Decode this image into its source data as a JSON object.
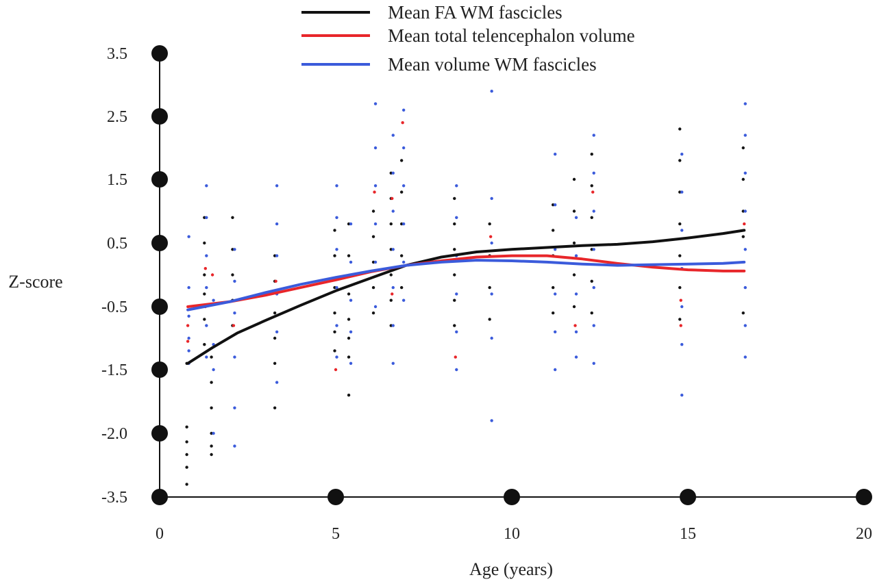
{
  "chart_data": {
    "type": "line",
    "xlabel": "Age (years)",
    "ylabel": "Z-score",
    "x_ticks": [
      0,
      5,
      10,
      15,
      20
    ],
    "x_tick_labels": [
      "0",
      "5",
      "10",
      "15",
      "20"
    ],
    "y_ticks": [
      -3.5,
      -2.0,
      -1.5,
      -0.5,
      0.5,
      1.5,
      2.5,
      3.5
    ],
    "y_tick_labels": [
      "-3.5",
      "-2.0",
      "-1.5",
      "-0.5",
      "0.5",
      "1.5",
      "2.5",
      "3.5"
    ],
    "xlim": [
      0,
      20
    ],
    "grid": false,
    "legend_position": "top-center",
    "series": [
      {
        "name": "Mean FA WM fascicles",
        "color": "#111111",
        "x": [
          0.8,
          1.5,
          2.2,
          3.0,
          4.0,
          5.0,
          6.0,
          7.0,
          8.0,
          9.0,
          10.0,
          11.0,
          12.0,
          13.0,
          14.0,
          15.0,
          16.0,
          16.6
        ],
        "y": [
          -1.4,
          -1.15,
          -0.92,
          -0.72,
          -0.48,
          -0.25,
          -0.05,
          0.15,
          0.28,
          0.36,
          0.4,
          0.43,
          0.46,
          0.48,
          0.52,
          0.58,
          0.65,
          0.7
        ]
      },
      {
        "name": "Mean total telencephalon volume",
        "color": "#e8262a",
        "x": [
          0.8,
          2.0,
          3.0,
          4.0,
          5.0,
          6.0,
          7.0,
          8.0,
          9.0,
          10.0,
          11.0,
          12.0,
          13.0,
          14.0,
          15.0,
          16.0,
          16.6
        ],
        "y": [
          -0.5,
          -0.42,
          -0.32,
          -0.2,
          -0.08,
          0.05,
          0.15,
          0.22,
          0.28,
          0.3,
          0.3,
          0.25,
          0.18,
          0.12,
          0.08,
          0.06,
          0.06
        ]
      },
      {
        "name": "Mean volume WM fascicles",
        "color": "#3b5bdb",
        "x": [
          0.8,
          2.0,
          3.0,
          4.0,
          5.0,
          6.0,
          7.0,
          8.0,
          9.0,
          10.0,
          11.0,
          12.0,
          13.0,
          14.0,
          15.0,
          16.0,
          16.6
        ],
        "y": [
          -0.55,
          -0.42,
          -0.28,
          -0.15,
          -0.04,
          0.06,
          0.15,
          0.2,
          0.23,
          0.22,
          0.2,
          0.17,
          0.15,
          0.16,
          0.17,
          0.18,
          0.2
        ]
      }
    ],
    "scatter_groups": [
      {
        "x": 0.8,
        "black": [
          -3.2,
          -2.8,
          -2.5,
          -2.2,
          -1.95,
          -1.4
        ],
        "red": [
          -0.8,
          -1.05
        ],
        "blue": [
          0.6,
          -0.2,
          -0.65,
          -1.0,
          -1.2,
          -1.4
        ]
      },
      {
        "x": 1.3,
        "black": [
          0.9,
          0.5,
          0.0,
          -0.3,
          -0.7,
          -1.1
        ],
        "red": [
          0.1,
          -0.5
        ],
        "blue": [
          1.4,
          0.9,
          0.3,
          -0.2,
          -0.8,
          -1.3
        ]
      },
      {
        "x": 1.5,
        "black": [
          -1.3,
          -1.6,
          -1.8,
          -2.0,
          -2.3,
          -2.5
        ],
        "red": [
          0.0
        ],
        "blue": [
          -0.4,
          -1.1,
          -1.5,
          -2.0
        ]
      },
      {
        "x": 2.1,
        "black": [
          0.9,
          0.4,
          0.0,
          -0.4,
          -0.8
        ],
        "red": [
          -0.8
        ],
        "blue": [
          0.4,
          -0.1,
          -0.6,
          -1.3,
          -1.8,
          -2.3
        ]
      },
      {
        "x": 3.3,
        "black": [
          0.3,
          -0.1,
          -0.6,
          -1.0,
          -1.4,
          -1.8
        ],
        "red": [
          -0.1
        ],
        "blue": [
          1.4,
          0.8,
          0.3,
          -0.3,
          -0.9,
          -1.6
        ]
      },
      {
        "x": 5.0,
        "black": [
          0.7,
          0.3,
          -0.2,
          -0.6,
          -0.9,
          -1.2
        ],
        "red": [
          -1.5
        ],
        "blue": [
          1.4,
          0.9,
          0.4,
          -0.2,
          -0.8,
          -1.3
        ]
      },
      {
        "x": 5.4,
        "black": [
          0.8,
          0.3,
          -0.3,
          -0.7,
          -1.0,
          -1.3,
          -1.7
        ],
        "red": [],
        "blue": [
          0.8,
          0.2,
          -0.4,
          -0.9,
          -1.4
        ]
      },
      {
        "x": 6.1,
        "black": [
          1.0,
          0.6,
          0.2,
          -0.2,
          -0.6
        ],
        "red": [
          1.3
        ],
        "blue": [
          2.7,
          2.0,
          1.4,
          0.8,
          0.2,
          -0.5
        ]
      },
      {
        "x": 6.6,
        "black": [
          1.6,
          1.2,
          0.8,
          0.4,
          0.0,
          -0.4,
          -0.8
        ],
        "red": [
          1.2,
          -0.3
        ],
        "blue": [
          2.2,
          1.6,
          1.0,
          0.4,
          -0.2,
          -0.8,
          -1.4
        ]
      },
      {
        "x": 6.9,
        "black": [
          1.8,
          1.3,
          0.8,
          0.3,
          -0.2
        ],
        "red": [
          2.4
        ],
        "blue": [
          2.6,
          2.0,
          1.4,
          0.8,
          0.2,
          -0.4
        ]
      },
      {
        "x": 8.4,
        "black": [
          1.2,
          0.8,
          0.4,
          0.0,
          -0.4,
          -0.8
        ],
        "red": [
          -1.3
        ],
        "blue": [
          1.4,
          0.9,
          0.3,
          -0.3,
          -0.9,
          -1.5
        ]
      },
      {
        "x": 9.4,
        "black": [
          0.8,
          0.3,
          -0.2,
          -0.7
        ],
        "red": [
          0.6
        ],
        "blue": [
          2.9,
          1.2,
          0.5,
          -0.3,
          -1.0,
          -1.9
        ]
      },
      {
        "x": 11.2,
        "black": [
          1.1,
          0.7,
          0.3,
          -0.2,
          -0.6
        ],
        "red": [],
        "blue": [
          1.9,
          1.1,
          0.4,
          -0.3,
          -0.9,
          -1.5
        ]
      },
      {
        "x": 11.8,
        "black": [
          1.5,
          1.0,
          0.5,
          0.0,
          -0.5
        ],
        "red": [
          -0.8
        ],
        "blue": [
          0.9,
          0.3,
          -0.3,
          -0.9,
          -1.3
        ]
      },
      {
        "x": 12.3,
        "black": [
          1.9,
          1.4,
          0.9,
          0.4,
          -0.1,
          -0.6
        ],
        "red": [
          1.3
        ],
        "blue": [
          2.2,
          1.6,
          1.0,
          0.4,
          -0.2,
          -0.8,
          -1.4
        ]
      },
      {
        "x": 14.8,
        "black": [
          2.3,
          1.8,
          1.3,
          0.8,
          0.3,
          -0.2,
          -0.7
        ],
        "red": [
          -0.4,
          -0.8
        ],
        "blue": [
          1.9,
          1.3,
          0.7,
          0.1,
          -0.5,
          -1.1,
          -1.7
        ]
      },
      {
        "x": 16.6,
        "black": [
          2.0,
          1.5,
          1.0,
          0.6,
          -0.6
        ],
        "red": [
          0.8
        ],
        "blue": [
          2.7,
          2.2,
          1.6,
          1.0,
          0.4,
          -0.2,
          -0.8,
          -1.3
        ]
      }
    ]
  }
}
